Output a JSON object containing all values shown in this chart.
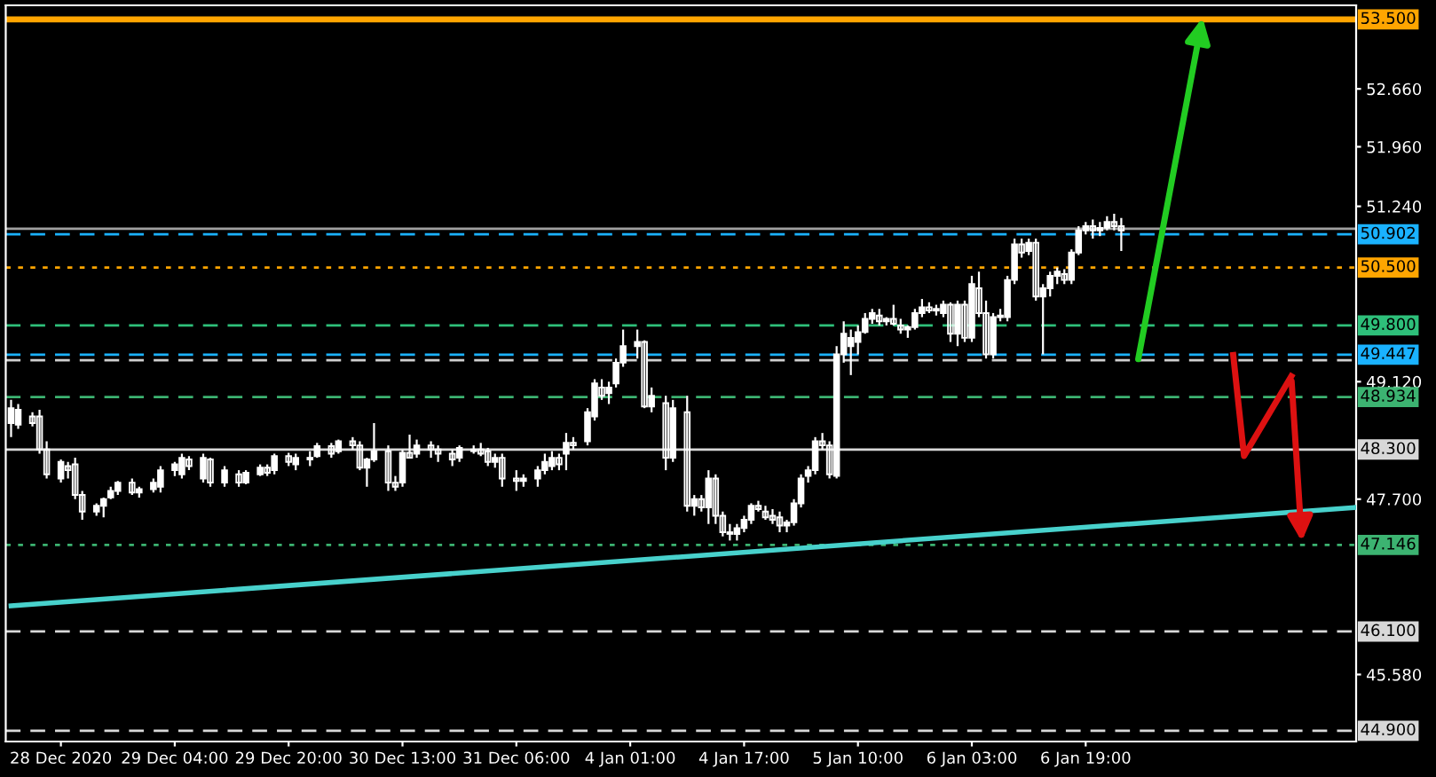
{
  "chart_data": {
    "type": "candlestick",
    "grid": false,
    "legend": false,
    "ylim": [
      44.77,
      53.67
    ],
    "categories": [
      null,
      null,
      null,
      null,
      null,
      null,
      null,
      "28 Dec 2020",
      null,
      null,
      null,
      null,
      null,
      null,
      null,
      null,
      null,
      null,
      null,
      null,
      null,
      null,
      null,
      "29 Dec 04:00",
      null,
      null,
      null,
      null,
      null,
      null,
      null,
      null,
      null,
      null,
      null,
      null,
      null,
      null,
      null,
      "29 Dec 20:00",
      null,
      null,
      null,
      null,
      null,
      null,
      null,
      null,
      null,
      null,
      null,
      null,
      null,
      null,
      null,
      "30 Dec 13:00",
      null,
      null,
      null,
      null,
      null,
      null,
      null,
      null,
      null,
      null,
      null,
      null,
      null,
      null,
      null,
      "31 Dec 06:00",
      null,
      null,
      null,
      null,
      null,
      null,
      null,
      null,
      null,
      null,
      null,
      null,
      null,
      null,
      null,
      "4 Jan 01:00",
      null,
      null,
      null,
      null,
      null,
      null,
      null,
      null,
      null,
      null,
      null,
      null,
      null,
      null,
      null,
      "4 Jan 17:00",
      null,
      null,
      null,
      null,
      null,
      null,
      null,
      null,
      null,
      null,
      null,
      null,
      null,
      null,
      null,
      "5 Jan 10:00",
      null,
      null,
      null,
      null,
      null,
      null,
      null,
      null,
      null,
      null,
      null,
      null,
      null,
      null,
      null,
      "6 Jan 03:00",
      null,
      null,
      null,
      null,
      null,
      null,
      null,
      null,
      null,
      null,
      null,
      null,
      null,
      null,
      null,
      "6 Jan 19:00",
      null,
      null,
      null,
      null,
      null,
      null,
      null,
      null,
      null,
      null,
      null,
      null,
      null,
      null,
      null,
      null,
      null,
      null,
      null,
      null,
      null,
      null,
      null,
      null,
      null,
      null,
      null,
      null,
      null,
      null,
      null,
      null,
      null,
      null,
      null,
      null,
      null,
      null
    ],
    "yticks": [
      {
        "value": 52.66,
        "label": "52.660"
      },
      {
        "value": 51.96,
        "label": "51.960"
      },
      {
        "value": 51.24,
        "label": "51.240"
      },
      {
        "value": 49.12,
        "label": "49.120"
      },
      {
        "value": 47.7,
        "label": "47.700"
      },
      {
        "value": 45.58,
        "label": "45.580"
      }
    ],
    "series": [
      {
        "type": "candlestick",
        "color": "#ffffff",
        "ohlc": [
          [
            48.62,
            48.9,
            48.45,
            48.8
          ],
          [
            48.6,
            48.85,
            48.55,
            48.78
          ],
          null,
          [
            48.7,
            48.75,
            48.58,
            48.62
          ],
          [
            48.7,
            48.78,
            48.25,
            48.3
          ],
          [
            48.3,
            48.4,
            47.95,
            48.0
          ],
          null,
          [
            47.95,
            48.18,
            47.9,
            48.15
          ],
          [
            48.1,
            48.15,
            47.95,
            48.05
          ],
          [
            48.12,
            48.2,
            47.7,
            47.75
          ],
          [
            47.75,
            47.8,
            47.45,
            47.55
          ],
          null,
          [
            47.55,
            47.65,
            47.5,
            47.62
          ],
          [
            47.62,
            47.72,
            47.48,
            47.7
          ],
          [
            47.72,
            47.85,
            47.7,
            47.8
          ],
          [
            47.8,
            47.92,
            47.75,
            47.9
          ],
          null,
          [
            47.9,
            47.95,
            47.75,
            47.78
          ],
          [
            47.78,
            47.85,
            47.72,
            47.82
          ],
          null,
          [
            47.82,
            47.95,
            47.78,
            47.9
          ],
          [
            47.85,
            48.1,
            47.78,
            48.05
          ],
          null,
          [
            48.05,
            48.15,
            47.98,
            48.12
          ],
          [
            48.0,
            48.25,
            47.95,
            48.2
          ],
          [
            48.18,
            48.22,
            48.05,
            48.1
          ],
          null,
          [
            47.95,
            48.25,
            47.9,
            48.2
          ],
          [
            48.18,
            48.2,
            47.85,
            47.9
          ],
          null,
          [
            47.9,
            48.1,
            47.85,
            48.05
          ],
          null,
          [
            48.0,
            48.05,
            47.85,
            47.9
          ],
          [
            47.9,
            48.05,
            47.88,
            48.02
          ],
          null,
          [
            48.0,
            48.12,
            47.98,
            48.08
          ],
          [
            48.08,
            48.12,
            47.98,
            48.02
          ],
          [
            48.05,
            48.25,
            48.0,
            48.22
          ],
          null,
          [
            48.22,
            48.26,
            48.1,
            48.15
          ],
          [
            48.12,
            48.25,
            48.05,
            48.2
          ],
          null,
          [
            48.2,
            48.28,
            48.1,
            48.18
          ],
          [
            48.22,
            48.38,
            48.2,
            48.34
          ],
          null,
          [
            48.34,
            48.38,
            48.2,
            48.25
          ],
          [
            48.28,
            48.42,
            48.25,
            48.4
          ],
          null,
          [
            48.4,
            48.45,
            48.3,
            48.35
          ],
          [
            48.35,
            48.4,
            48.05,
            48.08
          ],
          [
            48.08,
            48.2,
            47.85,
            48.18
          ],
          [
            48.18,
            48.62,
            48.15,
            48.28
          ],
          null,
          [
            48.28,
            48.35,
            47.8,
            47.9
          ],
          [
            47.9,
            47.98,
            47.8,
            47.85
          ],
          [
            47.9,
            48.3,
            47.85,
            48.26
          ],
          [
            48.26,
            48.48,
            48.2,
            48.2
          ],
          [
            48.25,
            48.42,
            48.2,
            48.35
          ],
          null,
          [
            48.35,
            48.4,
            48.2,
            48.3
          ],
          [
            48.3,
            48.35,
            48.15,
            48.25
          ],
          null,
          [
            48.25,
            48.3,
            48.1,
            48.18
          ],
          [
            48.2,
            48.35,
            48.15,
            48.32
          ],
          null,
          [
            48.3,
            48.35,
            48.25,
            48.28
          ],
          [
            48.3,
            48.38,
            48.22,
            48.25
          ],
          [
            48.28,
            48.32,
            48.1,
            48.15
          ],
          [
            48.15,
            48.25,
            48.08,
            48.2
          ],
          [
            48.2,
            48.25,
            47.85,
            47.95
          ],
          null,
          [
            47.95,
            48.05,
            47.8,
            47.92
          ],
          [
            47.92,
            48.0,
            47.85,
            47.95
          ],
          null,
          [
            47.95,
            48.1,
            47.85,
            48.05
          ],
          [
            48.05,
            48.25,
            48.0,
            48.15
          ],
          [
            48.1,
            48.28,
            48.05,
            48.2
          ],
          [
            48.2,
            48.25,
            48.05,
            48.12
          ],
          [
            48.25,
            48.5,
            48.05,
            48.38
          ],
          [
            48.38,
            48.45,
            48.3,
            48.35
          ],
          null,
          [
            48.4,
            48.8,
            48.35,
            48.75
          ],
          [
            48.7,
            49.15,
            48.65,
            49.1
          ],
          [
            49.05,
            49.15,
            48.9,
            48.95
          ],
          [
            48.98,
            49.12,
            48.85,
            49.05
          ],
          [
            49.1,
            49.4,
            49.05,
            49.35
          ],
          [
            49.35,
            49.75,
            49.3,
            49.55
          ],
          null,
          [
            49.55,
            49.75,
            49.4,
            49.6
          ],
          [
            49.6,
            49.62,
            48.8,
            48.82
          ],
          [
            48.82,
            49.05,
            48.75,
            48.95
          ],
          null,
          [
            48.86,
            48.95,
            48.05,
            48.2
          ],
          [
            48.2,
            48.9,
            48.15,
            48.8
          ],
          null,
          [
            48.75,
            48.95,
            47.55,
            47.62
          ],
          [
            47.62,
            47.75,
            47.5,
            47.7
          ],
          [
            47.7,
            47.75,
            47.55,
            47.6
          ],
          [
            47.6,
            48.05,
            47.4,
            47.95
          ],
          [
            47.95,
            48.0,
            47.4,
            47.5
          ],
          [
            47.5,
            47.55,
            47.25,
            47.3
          ],
          [
            47.3,
            47.4,
            47.2,
            47.28
          ],
          [
            47.28,
            47.4,
            47.2,
            47.35
          ],
          [
            47.35,
            47.5,
            47.3,
            47.45
          ],
          [
            47.45,
            47.65,
            47.4,
            47.62
          ],
          [
            47.62,
            47.68,
            47.55,
            47.58
          ],
          [
            47.55,
            47.62,
            47.45,
            47.48
          ],
          [
            47.5,
            47.58,
            47.4,
            47.45
          ],
          [
            47.48,
            47.55,
            47.3,
            47.38
          ],
          [
            47.38,
            47.45,
            47.3,
            47.42
          ],
          [
            47.42,
            47.7,
            47.38,
            47.65
          ],
          [
            47.65,
            48.0,
            47.6,
            47.95
          ],
          [
            47.98,
            48.1,
            47.9,
            48.05
          ],
          [
            48.05,
            48.45,
            48.0,
            48.4
          ],
          [
            48.4,
            48.5,
            48.3,
            48.35
          ],
          [
            48.35,
            48.4,
            47.95,
            48.0
          ],
          [
            47.98,
            49.55,
            47.95,
            49.45
          ],
          [
            49.45,
            49.85,
            49.35,
            49.7
          ],
          [
            49.55,
            49.75,
            49.2,
            49.65
          ],
          [
            49.6,
            49.8,
            49.45,
            49.72
          ],
          [
            49.72,
            49.95,
            49.7,
            49.88
          ],
          [
            49.88,
            50.0,
            49.82,
            49.95
          ],
          [
            49.92,
            50.0,
            49.8,
            49.85
          ],
          [
            49.85,
            49.9,
            49.8,
            49.88
          ],
          [
            49.88,
            50.05,
            49.8,
            49.82
          ],
          [
            49.8,
            49.88,
            49.7,
            49.75
          ],
          [
            49.75,
            49.8,
            49.65,
            49.78
          ],
          [
            49.78,
            50.0,
            49.75,
            49.95
          ],
          [
            49.95,
            50.12,
            49.9,
            50.02
          ],
          [
            50.02,
            50.08,
            49.95,
            49.98
          ],
          [
            49.98,
            50.05,
            49.92,
            50.0
          ],
          [
            49.95,
            50.1,
            49.9,
            50.05
          ],
          [
            50.05,
            50.08,
            49.6,
            49.7
          ],
          [
            49.7,
            50.1,
            49.55,
            50.05
          ],
          [
            50.05,
            50.1,
            49.6,
            49.65
          ],
          [
            49.65,
            50.4,
            49.6,
            50.3
          ],
          [
            50.25,
            50.45,
            49.9,
            49.95
          ],
          [
            49.95,
            50.1,
            49.4,
            49.45
          ],
          [
            49.45,
            49.95,
            49.4,
            49.9
          ],
          [
            49.9,
            50.0,
            49.85,
            49.92
          ],
          [
            49.9,
            50.4,
            49.85,
            50.35
          ],
          [
            50.35,
            50.85,
            50.3,
            50.78
          ],
          [
            50.78,
            50.85,
            50.62,
            50.68
          ],
          [
            50.7,
            50.85,
            50.65,
            50.8
          ],
          [
            50.8,
            50.85,
            50.1,
            50.15
          ],
          [
            50.15,
            50.3,
            49.45,
            50.25
          ],
          [
            50.25,
            50.45,
            50.15,
            50.4
          ],
          [
            50.4,
            50.5,
            50.3,
            50.45
          ],
          [
            50.42,
            50.48,
            50.3,
            50.35
          ],
          [
            50.35,
            50.72,
            50.3,
            50.68
          ],
          [
            50.68,
            51.0,
            50.65,
            50.95
          ],
          [
            50.95,
            51.05,
            50.9,
            51.0
          ],
          [
            51.0,
            51.08,
            50.85,
            50.95
          ],
          [
            50.95,
            51.05,
            50.88,
            50.98
          ],
          [
            50.98,
            51.12,
            50.95,
            51.05
          ],
          [
            51.05,
            51.15,
            50.95,
            51.0
          ],
          [
            51.0,
            51.1,
            50.7,
            50.95
          ],
          null,
          null,
          null,
          null,
          null,
          null,
          null,
          null,
          null,
          null,
          null,
          null,
          null,
          null,
          null,
          null,
          null,
          null,
          null,
          null,
          null,
          null,
          null,
          null,
          null,
          null,
          null,
          null,
          null,
          null,
          null,
          null,
          null
        ]
      },
      {
        "type": "line",
        "color": "#48d1cc",
        "values": [
          46.41,
          null,
          null,
          null,
          null,
          null,
          null,
          null,
          null,
          null,
          null,
          null,
          null,
          null,
          null,
          null,
          null,
          null,
          null,
          null,
          null,
          null,
          null,
          null,
          null,
          null,
          null,
          null,
          null,
          null,
          null,
          null,
          null,
          null,
          null,
          null,
          null,
          null,
          null,
          null,
          null,
          null,
          null,
          null,
          null,
          null,
          null,
          null,
          null,
          null,
          null,
          null,
          null,
          null,
          null,
          null,
          null,
          null,
          null,
          null,
          null,
          null,
          null,
          null,
          null,
          null,
          null,
          null,
          null,
          null,
          null,
          null,
          null,
          null,
          null,
          null,
          null,
          null,
          null,
          null,
          null,
          null,
          null,
          null,
          null,
          null,
          null,
          null,
          null,
          null,
          null,
          null,
          null,
          null,
          null,
          null,
          null,
          null,
          null,
          null,
          null,
          null,
          null,
          null,
          null,
          null,
          null,
          null,
          null,
          null,
          null,
          null,
          null,
          null,
          null,
          null,
          null,
          null,
          null,
          null,
          null,
          null,
          null,
          null,
          null,
          null,
          null,
          null,
          null,
          null,
          null,
          null,
          null,
          null,
          null,
          null,
          null,
          null,
          null,
          null,
          null,
          null,
          null,
          null,
          null,
          null,
          null,
          null,
          null,
          null,
          null,
          null,
          null,
          null,
          null,
          null,
          null,
          null,
          null,
          null,
          null,
          null,
          null,
          null,
          null,
          null,
          null,
          null,
          null,
          null,
          null,
          null,
          null,
          null,
          null,
          null,
          null,
          null,
          null,
          null,
          null,
          null,
          null,
          null,
          null,
          null,
          null,
          null,
          null,
          47.6
        ]
      }
    ],
    "ref_lines": [
      {
        "axis": "y",
        "value": 53.5,
        "label": "53.500",
        "color": "#ffa500",
        "line_style": "solid"
      },
      {
        "axis": "y",
        "value": 50.97,
        "color": "#a0a0a0",
        "line_style": "solid"
      },
      {
        "axis": "y",
        "value": 50.902,
        "label": "50.902",
        "color": "#1ab2ff",
        "line_style": "dashed"
      },
      {
        "axis": "y",
        "value": 50.5,
        "label": "50.500",
        "color": "#ffa500",
        "line_style": "dotted"
      },
      {
        "axis": "y",
        "value": 49.8,
        "label": "49.800",
        "color": "#2ebf7a",
        "line_style": "dashed"
      },
      {
        "axis": "y",
        "value": 49.447,
        "label": "49.447",
        "color": "#1ab2ff",
        "line_style": "dashed"
      },
      {
        "axis": "y",
        "value": 49.38,
        "color": "#d0d0d0",
        "line_style": "dashed"
      },
      {
        "axis": "y",
        "value": 48.934,
        "label": "48.934",
        "color": "#3cb371",
        "line_style": "dashed"
      },
      {
        "axis": "y",
        "value": 48.3,
        "label": "48.300",
        "color": "#d8d8d8",
        "line_style": "solid"
      },
      {
        "axis": "y",
        "value": 47.146,
        "label": "47.146",
        "color": "#3cb371",
        "line_style": "dotted"
      },
      {
        "axis": "y",
        "value": 46.1,
        "label": "46.100",
        "color": "#d8d8d8",
        "line_style": "dashed"
      },
      {
        "axis": "y",
        "value": 44.9,
        "label": "44.900",
        "color": "#d8d8d8",
        "line_style": "dashed"
      }
    ]
  }
}
